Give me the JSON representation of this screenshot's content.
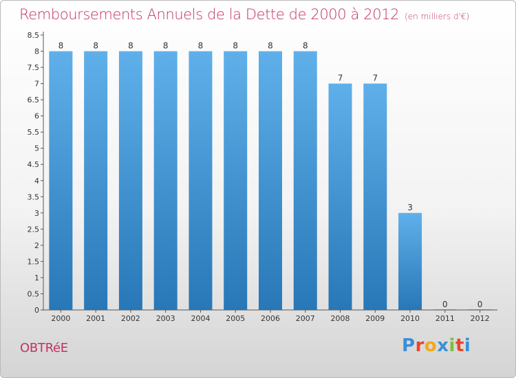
{
  "title": "Remboursements Annuels de la Dette de 2000 à 2012",
  "unit": "(en milliers d'€)",
  "commune": "OBTRéE",
  "logo": {
    "letters": [
      "P",
      "r",
      "o",
      "x",
      "i",
      "t",
      "i"
    ],
    "colors": [
      "#3a8fd8",
      "#e8452c",
      "#f2a81d",
      "#3a8fd8",
      "#7cbf3a",
      "#e8452c",
      "#3a8fd8"
    ]
  },
  "colors": {
    "bar_light": "#5fb0ea",
    "bar_dark": "#2877b7",
    "title": "#c2335e"
  },
  "chart_data": {
    "type": "bar",
    "title": "Remboursements Annuels de la Dette de 2000 à 2012",
    "categories": [
      "2000",
      "2001",
      "2002",
      "2003",
      "2004",
      "2005",
      "2006",
      "2007",
      "2008",
      "2009",
      "2010",
      "2011",
      "2012"
    ],
    "values": [
      8,
      8,
      8,
      8,
      8,
      8,
      8,
      8,
      7,
      7,
      3,
      0,
      0
    ],
    "value_labels": [
      "8",
      "8",
      "8",
      "8",
      "8",
      "8",
      "8",
      "8",
      "7",
      "7",
      "3",
      "0",
      "0"
    ],
    "yticks": [
      "0",
      "0.5",
      "1",
      "1.5",
      "2",
      "2.5",
      "3",
      "3.5",
      "4",
      "4.5",
      "5",
      "5.5",
      "6",
      "6.5",
      "7",
      "7.5",
      "8",
      "8.5"
    ],
    "ylim": [
      0,
      8.5
    ],
    "grid": false,
    "legend": "none"
  }
}
